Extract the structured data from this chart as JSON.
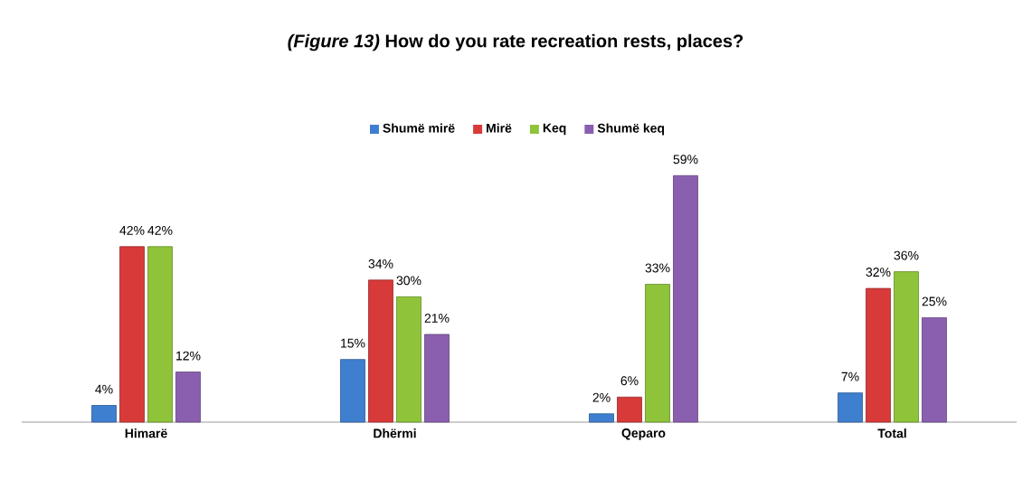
{
  "chart_data": {
    "type": "bar",
    "title": "*(Figure 13)* How do you rate recreation rests, places?",
    "categories": [
      "Himarë",
      "Dhërmi",
      "Qeparo",
      "Total"
    ],
    "series": [
      {
        "name": "Shumë mirë",
        "color": "#3f7fd0",
        "values": [
          4,
          15,
          2,
          7
        ],
        "value_labels": [
          "4%",
          "15%",
          "2%",
          "7%"
        ]
      },
      {
        "name": "Mirë",
        "color": "#d83a3a",
        "values": [
          42,
          34,
          6,
          32
        ],
        "value_labels": [
          "42%",
          "34%",
          "6%",
          "32%"
        ]
      },
      {
        "name": "Keq",
        "color": "#8fc43a",
        "values": [
          42,
          30,
          33,
          36
        ],
        "value_labels": [
          "42%",
          "30%",
          "33%",
          "36%"
        ]
      },
      {
        "name": "Shumë keq",
        "color": "#8b5fb0",
        "values": [
          12,
          21,
          59,
          25
        ],
        "value_labels": [
          "12%",
          "21%",
          "59%",
          "25%"
        ]
      }
    ],
    "tick_labels": "x",
    "legend": "top"
  }
}
